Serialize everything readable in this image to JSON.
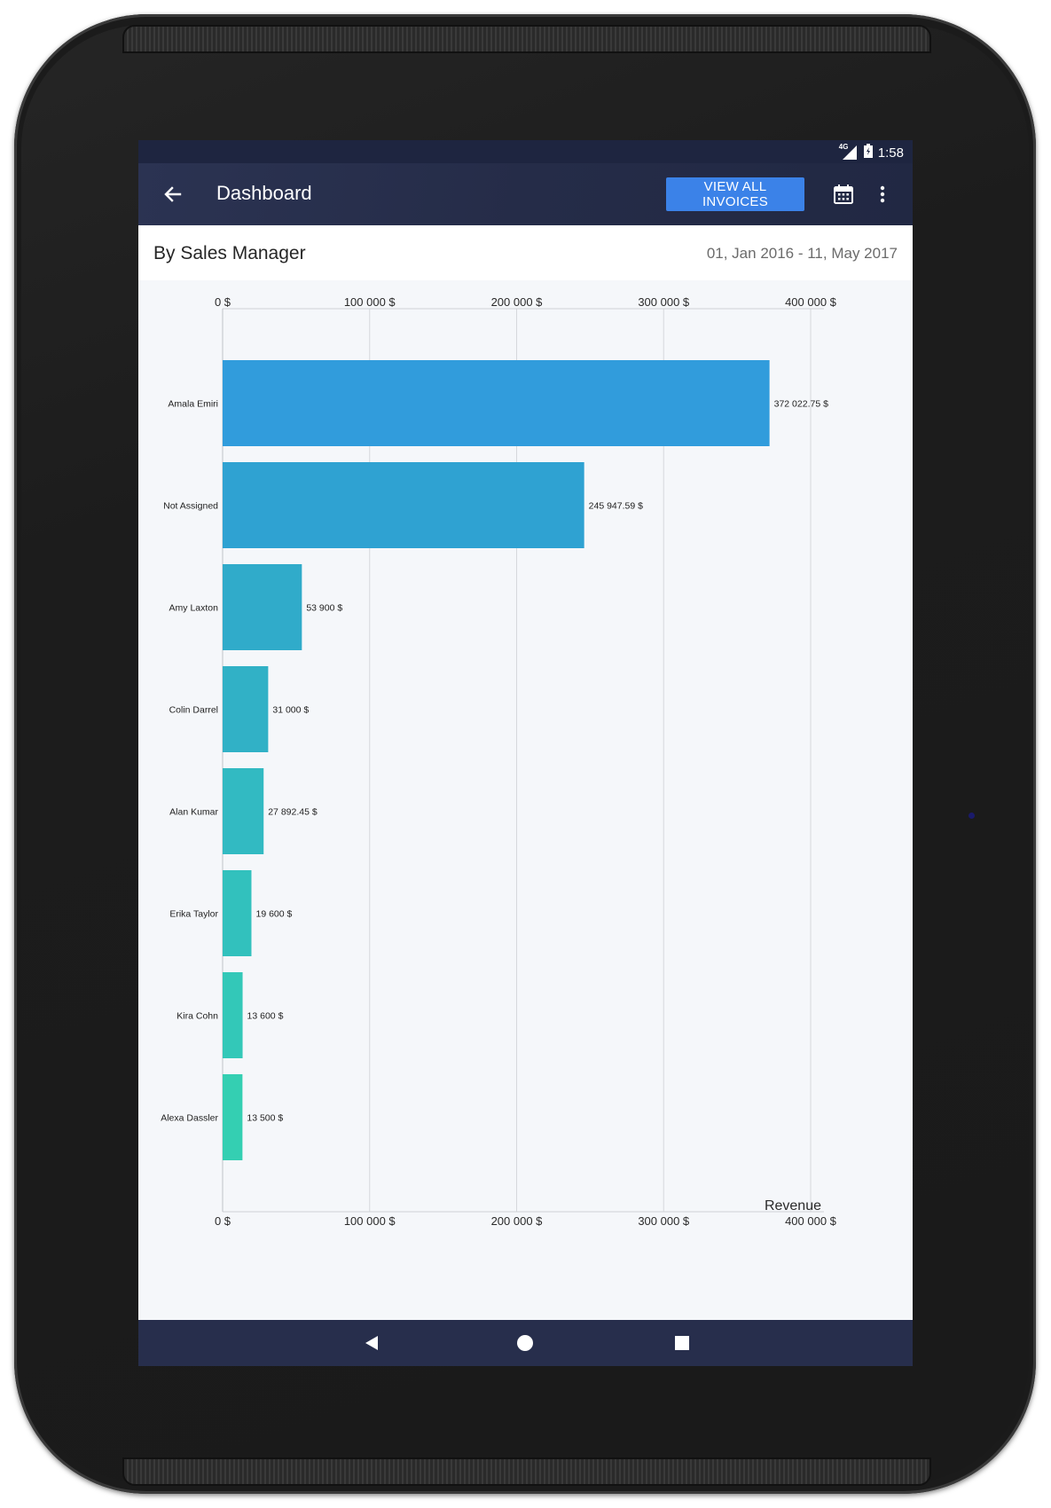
{
  "status_bar": {
    "network": "4G",
    "time": "1:58"
  },
  "app_bar": {
    "title": "Dashboard",
    "view_all_invoices_label": "VIEW ALL INVOICES"
  },
  "section": {
    "title": "By Sales Manager",
    "date_range": "01, Jan 2016 - 11, May 2017"
  },
  "icons": {
    "back": "arrow-back-icon",
    "calendar": "calendar-icon",
    "more": "more-vertical-icon",
    "nav_back": "triangle-back-icon",
    "nav_home": "circle-home-icon",
    "nav_recent": "square-recent-icon"
  },
  "colors": {
    "app_bar": "#252c48",
    "accent_button": "#3b82e8",
    "nav_bar": "#272e4c",
    "bar_gradient": [
      "#319cdc",
      "#2fa2d2",
      "#30abca",
      "#31b1c6",
      "#32bac2",
      "#32c1bd",
      "#33c8b8",
      "#34cfb2"
    ]
  },
  "chart_data": {
    "type": "bar",
    "orientation": "horizontal",
    "categories": [
      "Amala Emiri",
      "Not Assigned",
      "Amy Laxton",
      "Colin Darrel",
      "Alan Kumar",
      "Erika Taylor",
      "Kira Cohn",
      "Alexa Dassler"
    ],
    "values": [
      372022.75,
      245947.59,
      53900,
      31000,
      27892.45,
      19600,
      13600,
      13500
    ],
    "value_labels": [
      "372 022.75 $",
      "245 947.59 $",
      "53 900 $",
      "31 000 $",
      "27 892.45 $",
      "19 600 $",
      "13 600 $",
      "13 500 $"
    ],
    "xlim": [
      0,
      400000
    ],
    "x_ticks": [
      0,
      100000,
      200000,
      300000,
      400000
    ],
    "x_tick_labels": [
      "0 $",
      "100 000 $",
      "200 000 $",
      "300 000 $",
      "400 000 $"
    ],
    "xlabel": "Revenue",
    "grid": true,
    "axis_labels_top_and_bottom": true
  }
}
